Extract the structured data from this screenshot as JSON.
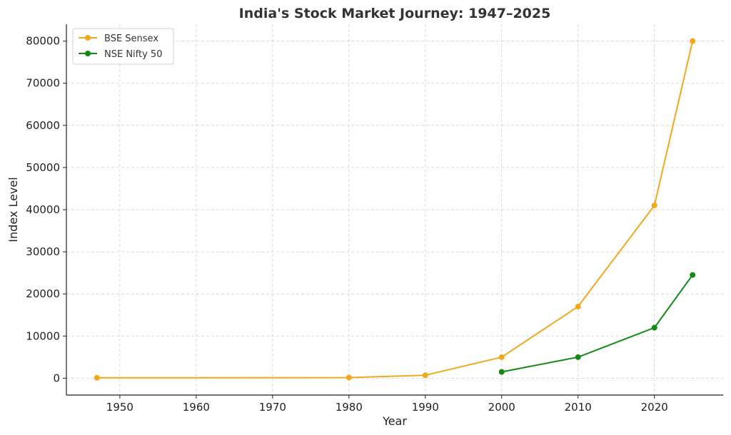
{
  "chart_data": {
    "type": "line",
    "title": "India's Stock Market Journey: 1947–2025",
    "xlabel": "Year",
    "ylabel": "Index Level",
    "xlim": [
      1943,
      2029
    ],
    "ylim": [
      -4000,
      84000
    ],
    "xticks": [
      1950,
      1960,
      1970,
      1980,
      1990,
      2000,
      2010,
      2020
    ],
    "yticks": [
      0,
      10000,
      20000,
      30000,
      40000,
      50000,
      60000,
      70000,
      80000
    ],
    "grid": true,
    "legend": "top-left",
    "series": [
      {
        "name": "BSE Sensex",
        "color": "#F2A81D",
        "points": [
          [
            1947,
            100
          ],
          [
            1980,
            150
          ],
          [
            1990,
            700
          ],
          [
            2000,
            5000
          ],
          [
            2010,
            17000
          ],
          [
            2020,
            41000
          ],
          [
            2025,
            80000
          ]
        ]
      },
      {
        "name": "NSE Nifty 50",
        "color": "#138A13",
        "points": [
          [
            2000,
            1500
          ],
          [
            2010,
            5000
          ],
          [
            2020,
            12000
          ],
          [
            2025,
            24500
          ]
        ]
      }
    ]
  }
}
